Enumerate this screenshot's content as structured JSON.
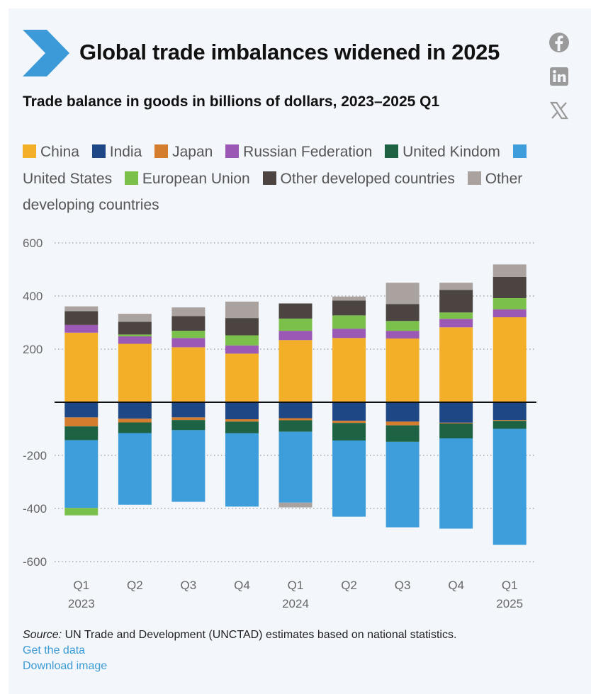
{
  "header": {
    "title": "Global trade imbalances widened in 2025",
    "subtitle": "Trade balance in goods in billions of dollars, 2023–2025 Q1"
  },
  "social": [
    {
      "name": "facebook-icon"
    },
    {
      "name": "linkedin-icon"
    },
    {
      "name": "x-icon"
    }
  ],
  "colors": {
    "logo": "#3c9ad8",
    "gridline": "#9a9a9a",
    "zero_line": "#111111",
    "link": "#3b9ad4"
  },
  "footer": {
    "source_label": "Source:",
    "source_text": " UN Trade and Development (UNCTAD) estimates based on national statistics.",
    "get_data": "Get the data",
    "download_image": "Download image"
  },
  "chart_data": {
    "type": "bar",
    "stacked": true,
    "title": "Trade balance in goods in billions of dollars, 2023–2025 Q1",
    "xlabel": "",
    "ylabel": "",
    "ylim": [
      -600,
      600
    ],
    "yticks": [
      600,
      400,
      200,
      -200,
      -400,
      -600
    ],
    "grid": "horizontal dotted",
    "legend_position": "top",
    "categories": [
      {
        "quarter": "Q1",
        "year": "2023"
      },
      {
        "quarter": "Q2",
        "year": ""
      },
      {
        "quarter": "Q3",
        "year": ""
      },
      {
        "quarter": "Q4",
        "year": ""
      },
      {
        "quarter": "Q1",
        "year": "2024"
      },
      {
        "quarter": "Q2",
        "year": ""
      },
      {
        "quarter": "Q3",
        "year": ""
      },
      {
        "quarter": "Q4",
        "year": ""
      },
      {
        "quarter": "Q1",
        "year": "2025"
      }
    ],
    "series": [
      {
        "name": "China",
        "color": "#f2af27",
        "values": [
          262,
          220,
          207,
          183,
          234,
          242,
          240,
          282,
          320
        ]
      },
      {
        "name": "India",
        "color": "#1e4785",
        "values": [
          -57,
          -62,
          -57,
          -64,
          -60,
          -70,
          -73,
          -77,
          -67
        ]
      },
      {
        "name": "Japan",
        "color": "#d47d2e",
        "values": [
          -34,
          -14,
          -10,
          -9,
          -8,
          -8,
          -14,
          -3,
          -3
        ]
      },
      {
        "name": "Russian Federation",
        "color": "#9b59b5",
        "values": [
          29,
          28,
          35,
          31,
          35,
          35,
          29,
          32,
          30
        ]
      },
      {
        "name": "United Kindom",
        "color": "#1d6343",
        "values": [
          -52,
          -40,
          -38,
          -44,
          -43,
          -66,
          -62,
          -56,
          -30
        ]
      },
      {
        "name": "United States",
        "color": "#3e9edb",
        "values": [
          -255,
          -270,
          -270,
          -276,
          -267,
          -287,
          -322,
          -340,
          -437
        ]
      },
      {
        "name": "European Union",
        "color": "#7bc04a",
        "values": [
          -28,
          7,
          27,
          38,
          46,
          50,
          37,
          24,
          42
        ]
      },
      {
        "name": "Other developed countries",
        "color": "#4b4440",
        "values": [
          52,
          48,
          55,
          65,
          57,
          56,
          64,
          85,
          80
        ]
      },
      {
        "name": "Other developing countries",
        "color": "#aaa29e",
        "values": [
          18,
          30,
          33,
          62,
          0,
          15,
          80,
          27,
          47
        ]
      }
    ],
    "negative_other_developing": [
      0,
      0,
      0,
      0,
      -18,
      0,
      0,
      0,
      0
    ]
  }
}
